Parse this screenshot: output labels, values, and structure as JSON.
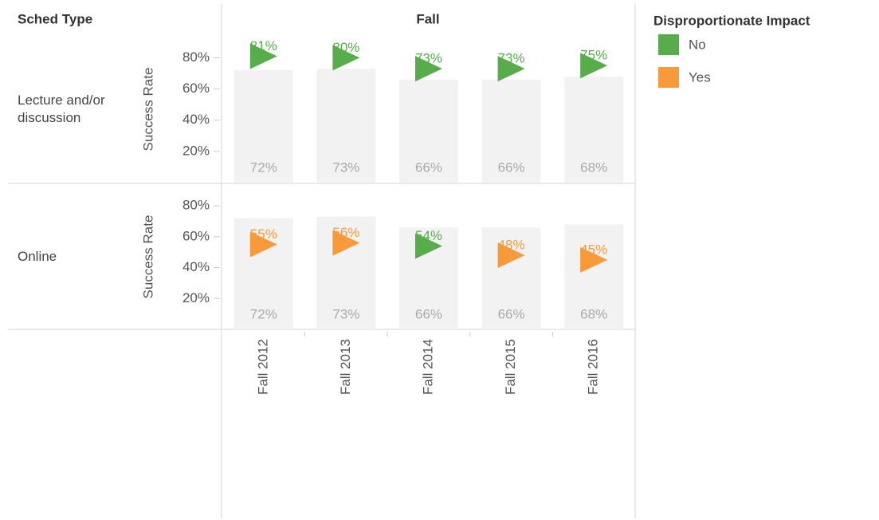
{
  "chart_data": {
    "type": "bar",
    "row_header": "Sched Type",
    "column_header": "Fall",
    "y_label": "Success Rate",
    "categories": [
      "Fall 2012",
      "Fall 2013",
      "Fall 2014",
      "Fall 2015",
      "Fall 2016"
    ],
    "ylim": [
      0,
      94
    ],
    "yticks": [
      {
        "value": 20,
        "label": "20%"
      },
      {
        "value": 40,
        "label": "40%"
      },
      {
        "value": 60,
        "label": "60%"
      },
      {
        "value": 80,
        "label": "80%"
      }
    ],
    "bar_color": "#f2f2f2",
    "bar_label_color": "#aaaaaa",
    "legend": {
      "title": "Disproportionate Impact",
      "series": [
        {
          "name": "No",
          "color": "#57ad4a"
        },
        {
          "name": "Yes",
          "color": "#f8993a"
        }
      ]
    },
    "panels": [
      {
        "name": "Lecture and/or discussion",
        "bar_values": [
          72,
          73,
          66,
          66,
          68
        ],
        "bar_value_labels": [
          "72%",
          "73%",
          "66%",
          "66%",
          "68%"
        ],
        "values": [
          81,
          80,
          73,
          73,
          75
        ],
        "value_labels": [
          "81%",
          "80%",
          "73%",
          "73%",
          "75%"
        ],
        "groups": [
          "No",
          "No",
          "No",
          "No",
          "No"
        ]
      },
      {
        "name": "Online",
        "bar_values": [
          72,
          73,
          66,
          66,
          68
        ],
        "bar_value_labels": [
          "72%",
          "73%",
          "66%",
          "66%",
          "68%"
        ],
        "values": [
          55,
          56,
          54,
          48,
          45
        ],
        "value_labels": [
          "55%",
          "56%",
          "54%",
          "48%",
          "45%"
        ],
        "groups": [
          "Yes",
          "Yes",
          "No",
          "Yes",
          "Yes"
        ]
      }
    ]
  }
}
